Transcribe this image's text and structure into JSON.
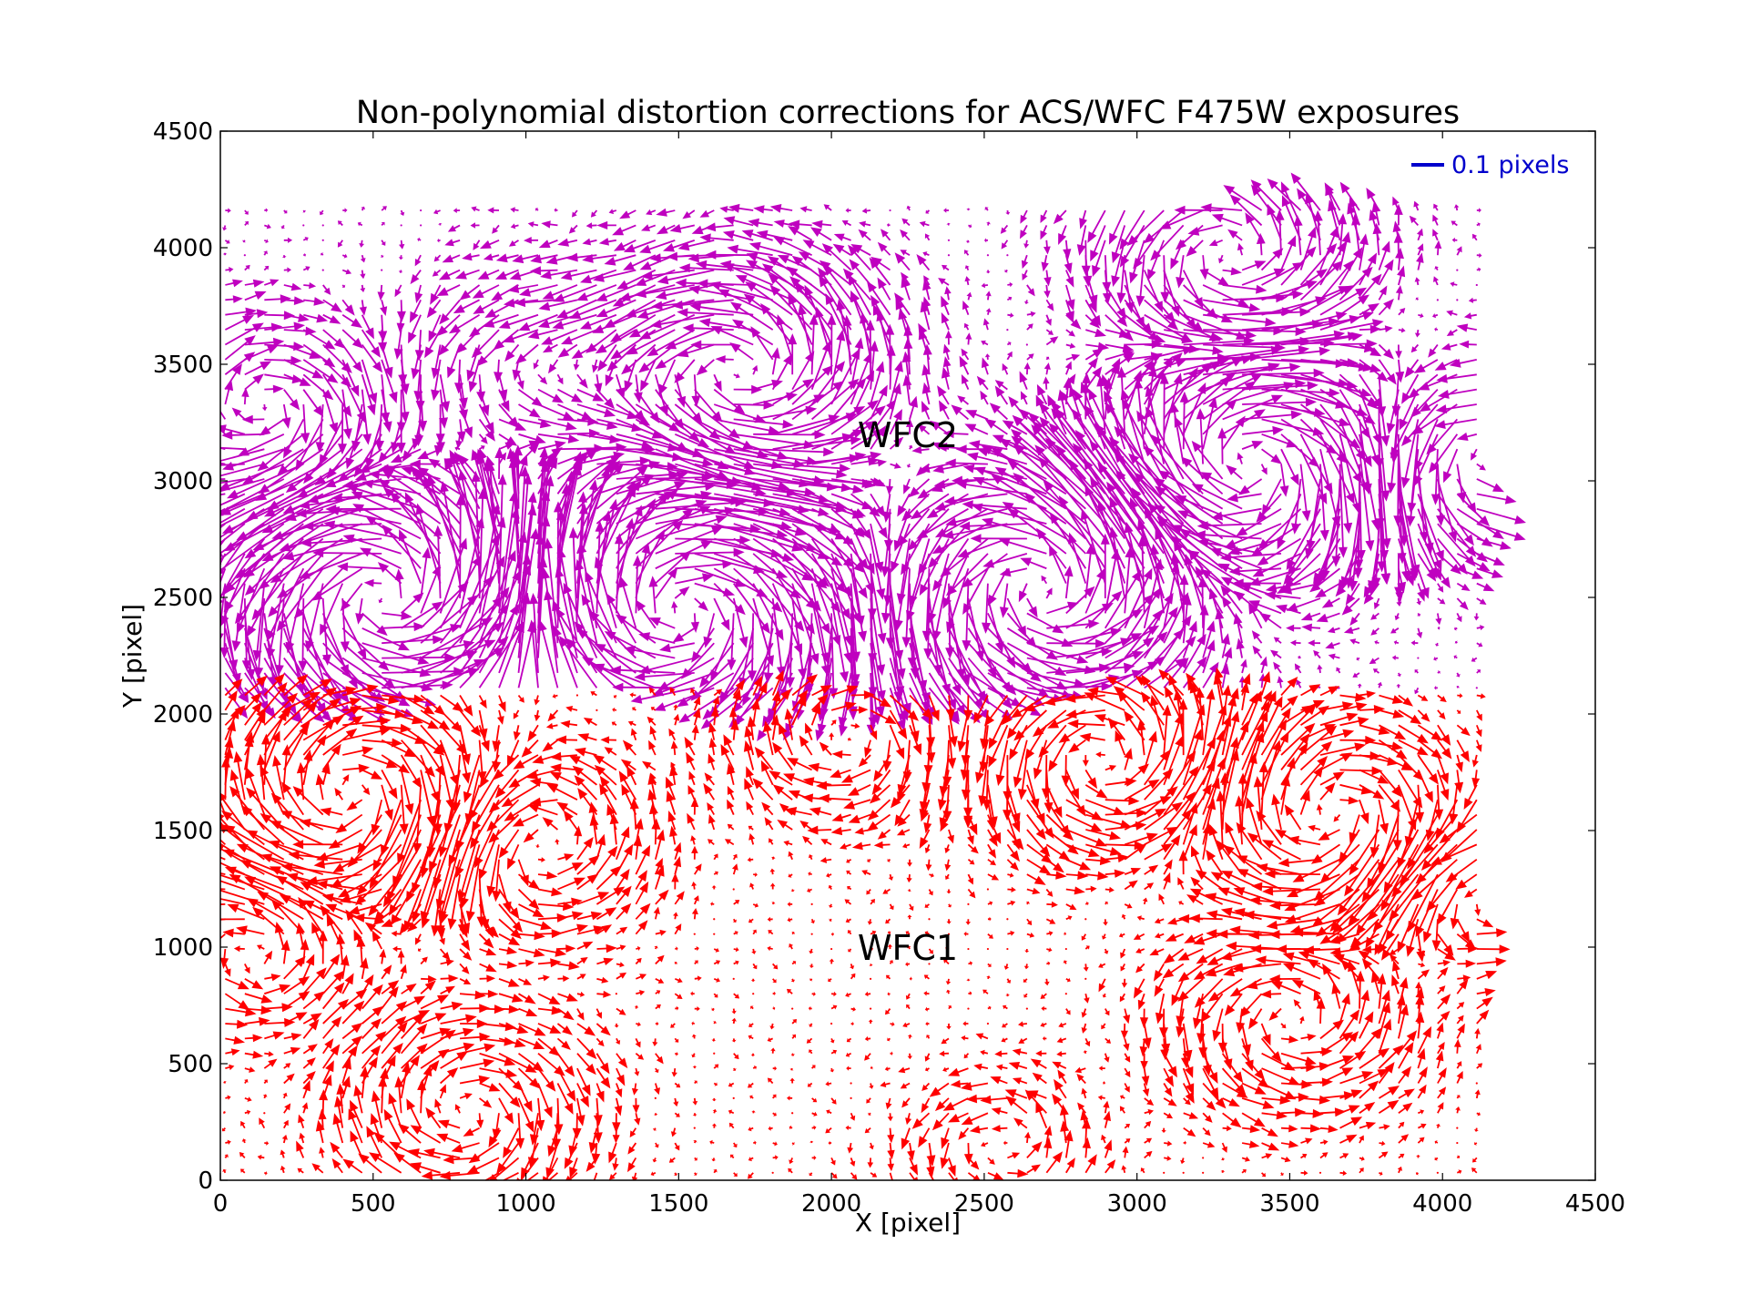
{
  "chart_data": {
    "type": "quiver",
    "title": "Non-polynomial distortion corrections for ACS/WFC F475W exposures",
    "xlabel": "X [pixel]",
    "ylabel": "Y [pixel]",
    "xlim": [
      0,
      4500
    ],
    "ylim": [
      0,
      4500
    ],
    "xticks": [
      "0",
      "500",
      "1000",
      "1500",
      "2000",
      "2500",
      "3000",
      "3500",
      "4000",
      "4500"
    ],
    "yticks": [
      "0",
      "500",
      "1000",
      "1500",
      "2000",
      "2500",
      "3000",
      "3500",
      "4000",
      "4500"
    ],
    "grid": false,
    "legend": {
      "placement": "top-right",
      "label": "0.1 pixels",
      "color": "#0000cc",
      "reference_length": 0.1
    },
    "arrow_scale_pixels_per_unit": 1100,
    "grid_spacing": 64,
    "series": [
      {
        "name": "WFC2",
        "color": "#bf00bf",
        "x_range": [
          0,
          4160
        ],
        "y_range": [
          2080,
          4180
        ],
        "vortices": [
          {
            "cx": 550,
            "cy": 2500,
            "strength": 0.13,
            "radius": 330
          },
          {
            "cx": 1500,
            "cy": 2450,
            "strength": -0.11,
            "radius": 350
          },
          {
            "cx": 1700,
            "cy": 3450,
            "strength": 0.1,
            "radius": 320
          },
          {
            "cx": 2700,
            "cy": 2550,
            "strength": 0.11,
            "radius": 340
          },
          {
            "cx": 3350,
            "cy": 3050,
            "strength": -0.1,
            "radius": 330
          },
          {
            "cx": 3300,
            "cy": 3950,
            "strength": 0.08,
            "radius": 280
          },
          {
            "cx": 4100,
            "cy": 3100,
            "strength": 0.08,
            "radius": 260
          },
          {
            "cx": 150,
            "cy": 3300,
            "strength": -0.07,
            "radius": 250
          },
          {
            "cx": 1000,
            "cy": 3500,
            "strength": 0.05,
            "radius": 260
          }
        ]
      },
      {
        "name": "WFC1",
        "color": "#ff0000",
        "x_range": [
          0,
          4160
        ],
        "y_range": [
          0,
          2080
        ],
        "vortices": [
          {
            "cx": 450,
            "cy": 1650,
            "strength": -0.08,
            "radius": 300
          },
          {
            "cx": 1000,
            "cy": 1450,
            "strength": 0.06,
            "radius": 260
          },
          {
            "cx": 2900,
            "cy": 1800,
            "strength": 0.07,
            "radius": 260
          },
          {
            "cx": 3650,
            "cy": 1550,
            "strength": -0.07,
            "radius": 280
          },
          {
            "cx": 4100,
            "cy": 1250,
            "strength": 0.06,
            "radius": 240
          },
          {
            "cx": 3500,
            "cy": 700,
            "strength": 0.06,
            "radius": 260
          },
          {
            "cx": 800,
            "cy": 300,
            "strength": -0.06,
            "radius": 260
          },
          {
            "cx": 2050,
            "cy": 1900,
            "strength": -0.05,
            "radius": 230
          },
          {
            "cx": 120,
            "cy": 1000,
            "strength": 0.05,
            "radius": 230
          },
          {
            "cx": 2550,
            "cy": 150,
            "strength": 0.04,
            "radius": 200
          }
        ]
      }
    ],
    "annotations": [
      {
        "text": "WFC2",
        "x": 2250,
        "y": 3200
      },
      {
        "text": "WFC1",
        "x": 2250,
        "y": 1000
      }
    ]
  }
}
